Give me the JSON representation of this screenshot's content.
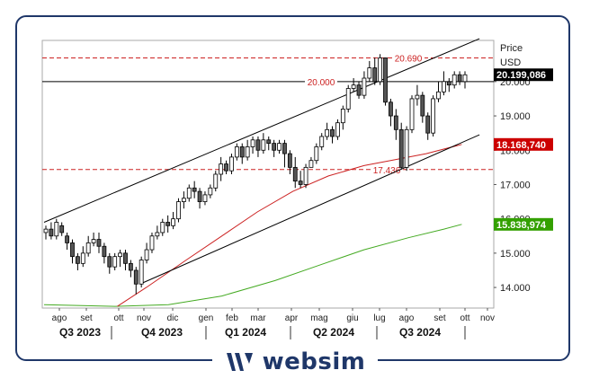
{
  "brand": {
    "name": "websim",
    "logo_icon": "websim-w-logo-icon"
  },
  "colors": {
    "frame": "#1f3769",
    "candle_up": "#ffffff",
    "candle_down": "#555555",
    "ma_red": "#cc2222",
    "ma_green": "#44aa22",
    "level_red": "#cc2222",
    "channel": "#000000"
  },
  "chart_data": {
    "type": "candlestick",
    "axis": {
      "title": "Price",
      "unit": "USD",
      "side": "right"
    },
    "ylim": [
      13.4,
      21.2
    ],
    "y_ticks": [
      {
        "value": 14.0,
        "label": "14.000"
      },
      {
        "value": 15.0,
        "label": "15.000"
      },
      {
        "value": 16.0,
        "label": "16.000"
      },
      {
        "value": 17.0,
        "label": "17.000"
      },
      {
        "value": 18.0,
        "label": "18.000"
      },
      {
        "value": 19.0,
        "label": "19.000"
      },
      {
        "value": 20.0,
        "label": "20.000"
      }
    ],
    "months": [
      "ago",
      "set",
      "ott",
      "nov",
      "dic",
      "gen",
      "feb",
      "mar",
      "apr",
      "mag",
      "giu",
      "lug",
      "ago",
      "set",
      "ott",
      "nov"
    ],
    "quarters": [
      "Q3 2023",
      "Q4 2023",
      "Q1 2024",
      "Q2 2024",
      "Q3 2024"
    ],
    "levels": [
      {
        "value": 20.69,
        "label": "20.690",
        "style": "dashed-red"
      },
      {
        "value": 20.0,
        "label": "20.000",
        "style": "solid-black"
      },
      {
        "value": 17.436,
        "label": "17.436",
        "style": "dashed-red"
      }
    ],
    "price_tags": [
      {
        "value": 20.199086,
        "label": "20.199,086",
        "color": "#000000"
      },
      {
        "value": 18.16874,
        "label": "18.168,740",
        "color": "#cc0000"
      },
      {
        "value": 15.838974,
        "label": "15.838,974",
        "color": "#33a000"
      }
    ],
    "channel_upper": [
      [
        0,
        15.9
      ],
      [
        98,
        21.25
      ]
    ],
    "channel_lower": [
      [
        21.6,
        14.1
      ],
      [
        98,
        18.45
      ]
    ],
    "ma_red": [
      [
        16.5,
        13.45
      ],
      [
        23,
        14.0
      ],
      [
        32,
        14.8
      ],
      [
        40,
        15.5
      ],
      [
        48,
        16.2
      ],
      [
        56,
        16.8
      ],
      [
        64,
        17.25
      ],
      [
        72,
        17.55
      ],
      [
        78,
        17.7
      ],
      [
        86,
        17.9
      ],
      [
        94,
        18.17
      ]
    ],
    "ma_green": [
      [
        0,
        13.5
      ],
      [
        16,
        13.45
      ],
      [
        28,
        13.5
      ],
      [
        40,
        13.75
      ],
      [
        52,
        14.2
      ],
      [
        62,
        14.65
      ],
      [
        72,
        15.1
      ],
      [
        82,
        15.45
      ],
      [
        90,
        15.7
      ],
      [
        94,
        15.84
      ]
    ],
    "candles": [
      [
        15.6,
        15.7,
        15.8,
        15.4
      ],
      [
        15.7,
        15.5,
        15.9,
        15.4
      ],
      [
        15.5,
        15.9,
        16.0,
        15.4
      ],
      [
        15.8,
        15.6,
        15.9,
        15.5
      ],
      [
        15.5,
        15.3,
        15.6,
        15.1
      ],
      [
        15.3,
        14.9,
        15.4,
        14.7
      ],
      [
        14.9,
        14.7,
        15.0,
        14.5
      ],
      [
        14.7,
        15.0,
        15.2,
        14.6
      ],
      [
        15.0,
        15.3,
        15.5,
        14.9
      ],
      [
        15.3,
        15.4,
        15.6,
        15.2
      ],
      [
        15.4,
        15.2,
        15.6,
        15.0
      ],
      [
        15.2,
        14.9,
        15.3,
        14.7
      ],
      [
        14.9,
        14.6,
        15.0,
        14.4
      ],
      [
        14.6,
        14.9,
        15.0,
        14.5
      ],
      [
        14.9,
        15.0,
        15.1,
        14.6
      ],
      [
        15.0,
        14.7,
        15.1,
        14.5
      ],
      [
        14.7,
        14.5,
        14.8,
        14.3
      ],
      [
        14.5,
        14.1,
        14.6,
        13.8
      ],
      [
        14.1,
        14.8,
        14.9,
        14.0
      ],
      [
        14.8,
        15.1,
        15.3,
        14.7
      ],
      [
        15.1,
        15.5,
        15.6,
        15.0
      ],
      [
        15.5,
        15.6,
        15.8,
        15.4
      ],
      [
        15.6,
        15.9,
        16.0,
        15.5
      ],
      [
        15.9,
        15.8,
        16.1,
        15.6
      ],
      [
        15.8,
        16.0,
        16.2,
        15.7
      ],
      [
        16.0,
        16.5,
        16.6,
        15.9
      ],
      [
        16.5,
        16.6,
        16.8,
        16.3
      ],
      [
        16.6,
        16.9,
        17.0,
        16.5
      ],
      [
        16.9,
        16.8,
        17.1,
        16.6
      ],
      [
        16.8,
        16.5,
        16.9,
        16.3
      ],
      [
        16.5,
        16.7,
        16.8,
        16.4
      ],
      [
        16.7,
        16.9,
        17.0,
        16.6
      ],
      [
        16.9,
        17.3,
        17.4,
        16.8
      ],
      [
        17.3,
        17.6,
        17.8,
        17.1
      ],
      [
        17.6,
        17.4,
        17.7,
        17.3
      ],
      [
        17.4,
        17.8,
        17.9,
        17.3
      ],
      [
        17.8,
        18.1,
        18.2,
        17.7
      ],
      [
        18.1,
        17.8,
        18.2,
        17.6
      ],
      [
        17.8,
        18.1,
        18.3,
        17.7
      ],
      [
        18.1,
        18.3,
        18.4,
        17.9
      ],
      [
        18.3,
        18.0,
        18.4,
        17.8
      ],
      [
        18.0,
        18.3,
        18.5,
        17.9
      ],
      [
        18.3,
        18.2,
        18.4,
        18.0
      ],
      [
        18.2,
        18.0,
        18.3,
        17.8
      ],
      [
        18.0,
        18.2,
        18.3,
        17.9
      ],
      [
        18.2,
        17.9,
        18.3,
        17.5
      ],
      [
        17.9,
        17.5,
        18.0,
        17.3
      ],
      [
        17.5,
        17.1,
        17.8,
        16.9
      ],
      [
        17.1,
        17.0,
        17.4,
        16.9
      ],
      [
        17.0,
        17.5,
        17.6,
        16.9
      ],
      [
        17.5,
        17.7,
        17.8,
        17.5
      ],
      [
        17.7,
        18.1,
        18.2,
        17.6
      ],
      [
        18.1,
        18.4,
        18.5,
        18.0
      ],
      [
        18.4,
        18.6,
        18.8,
        18.3
      ],
      [
        18.6,
        18.4,
        18.7,
        18.2
      ],
      [
        18.4,
        18.8,
        18.9,
        18.3
      ],
      [
        18.8,
        19.2,
        19.3,
        18.6
      ],
      [
        19.2,
        19.8,
        19.9,
        19.1
      ],
      [
        19.8,
        19.9,
        20.1,
        19.7
      ],
      [
        19.9,
        19.6,
        20.0,
        19.5
      ],
      [
        19.6,
        20.1,
        20.3,
        19.5
      ],
      [
        20.1,
        20.4,
        20.6,
        20.0
      ],
      [
        20.4,
        20.0,
        20.7,
        19.9
      ],
      [
        20.0,
        20.69,
        20.8,
        19.9
      ],
      [
        20.69,
        19.4,
        20.7,
        19.3
      ],
      [
        19.4,
        19.0,
        19.5,
        18.7
      ],
      [
        19.0,
        18.6,
        19.2,
        18.3
      ],
      [
        18.6,
        17.5,
        18.8,
        17.44
      ],
      [
        17.5,
        18.6,
        18.7,
        17.4
      ],
      [
        18.6,
        19.5,
        19.6,
        18.5
      ],
      [
        19.5,
        19.6,
        19.9,
        19.3
      ],
      [
        19.6,
        19.0,
        19.7,
        18.8
      ],
      [
        19.0,
        18.5,
        19.1,
        18.3
      ],
      [
        18.5,
        19.5,
        19.6,
        18.4
      ],
      [
        19.5,
        19.7,
        20.0,
        19.4
      ],
      [
        19.7,
        20.0,
        20.3,
        19.6
      ],
      [
        20.0,
        19.9,
        20.1,
        19.7
      ],
      [
        19.9,
        20.199,
        20.3,
        19.8
      ],
      [
        20.2,
        20.0,
        20.3,
        19.9
      ],
      [
        20.0,
        20.199,
        20.3,
        19.8
      ]
    ]
  }
}
